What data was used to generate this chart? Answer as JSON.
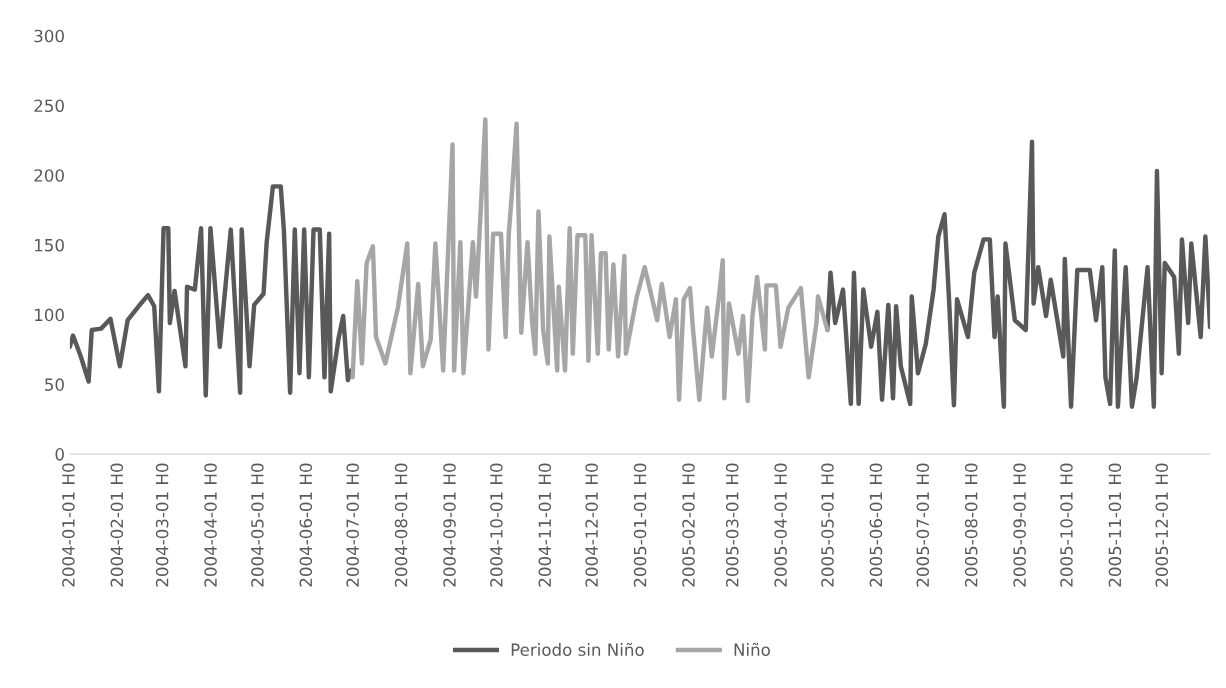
{
  "chart_data": {
    "type": "line",
    "grid": false,
    "legend": "bottom",
    "line_style": "solid",
    "marker": "none",
    "xlim": [
      "2004-01-01",
      "2005-12-31"
    ],
    "ylim": [
      0,
      300
    ],
    "yticks": [
      0,
      50,
      100,
      150,
      200,
      250,
      300
    ],
    "xticks": [
      {
        "value": "2004-01-01",
        "label": "2004-01-01 H0"
      },
      {
        "value": "2004-02-01",
        "label": "2004-02-01 H0"
      },
      {
        "value": "2004-03-01",
        "label": "2004-03-01 H0"
      },
      {
        "value": "2004-04-01",
        "label": "2004-04-01 H0"
      },
      {
        "value": "2004-05-01",
        "label": "2004-05-01 H0"
      },
      {
        "value": "2004-06-01",
        "label": "2004-06-01 H0"
      },
      {
        "value": "2004-07-01",
        "label": "2004-07-01 H0"
      },
      {
        "value": "2004-08-01",
        "label": "2004-08-01 H0"
      },
      {
        "value": "2004-09-01",
        "label": "2004-09-01 H0"
      },
      {
        "value": "2004-10-01",
        "label": "2004-10-01 H0"
      },
      {
        "value": "2004-11-01",
        "label": "2004-11-01 H0"
      },
      {
        "value": "2004-12-01",
        "label": "2004-12-01 H0"
      },
      {
        "value": "2005-01-01",
        "label": "2005-01-01 H0"
      },
      {
        "value": "2005-02-01",
        "label": "2005-02-01 H0"
      },
      {
        "value": "2005-03-01",
        "label": "2005-03-01 H0"
      },
      {
        "value": "2005-04-01",
        "label": "2005-04-01 H0"
      },
      {
        "value": "2005-05-01",
        "label": "2005-05-01 H0"
      },
      {
        "value": "2005-06-01",
        "label": "2005-06-01 H0"
      },
      {
        "value": "2005-07-01",
        "label": "2005-07-01 H0"
      },
      {
        "value": "2005-08-01",
        "label": "2005-08-01 H0"
      },
      {
        "value": "2005-09-01",
        "label": "2005-09-01 H0"
      },
      {
        "value": "2005-10-01",
        "label": "2005-10-01 H0"
      },
      {
        "value": "2005-11-01",
        "label": "2005-11-01 H0"
      },
      {
        "value": "2005-12-01",
        "label": "2005-12-01 H0"
      }
    ],
    "series": [
      {
        "name": "Periodo sin Niño",
        "color": "#595959",
        "x": [
          "2004-01-01",
          "2004-01-03",
          "2004-01-08",
          "2004-01-13",
          "2004-01-15",
          "2004-01-21",
          "2004-01-27",
          "2004-02-02",
          "2004-02-07",
          "2004-02-14",
          "2004-02-20",
          "2004-02-24",
          "2004-02-27",
          "2004-03-01",
          "2004-03-04",
          "2004-03-05",
          "2004-03-08",
          "2004-03-15",
          "2004-03-16",
          "2004-03-21",
          "2004-03-25",
          "2004-03-28",
          "2004-03-31",
          "2004-04-06",
          "2004-04-13",
          "2004-04-19",
          "2004-04-20",
          "2004-04-25",
          "2004-04-28",
          "2004-05-04",
          "2004-05-06",
          "2004-05-10",
          "2004-05-15",
          "2004-05-17",
          "2004-05-21",
          "2004-05-24",
          "2004-05-27",
          "2004-05-30",
          "2004-06-02",
          "2004-06-05",
          "2004-06-09",
          "2004-06-12",
          "2004-06-15",
          "2004-06-16",
          "2004-06-21",
          "2004-06-24",
          "2004-06-27",
          "2004-06-29",
          "2004-12-01",
          "2005-04-30",
          "2005-05-02",
          "2005-05-05",
          "2005-05-10",
          "2005-05-15",
          "2005-05-17",
          "2005-05-20",
          "2005-05-23",
          "2005-05-28",
          "2005-06-01",
          "2005-06-04",
          "2005-06-08",
          "2005-06-11",
          "2005-06-13",
          "2005-06-16",
          "2005-06-22",
          "2005-06-23",
          "2005-06-27",
          "2005-07-02",
          "2005-07-07",
          "2005-07-10",
          "2005-07-14",
          "2005-07-17",
          "2005-07-20",
          "2005-07-22",
          "2005-07-29",
          "2005-08-02",
          "2005-08-08",
          "2005-08-12",
          "2005-08-15",
          "2005-08-17",
          "2005-08-21",
          "2005-08-22",
          "2005-08-28",
          "2005-09-04",
          "2005-09-08",
          "2005-09-09",
          "2005-09-12",
          "2005-09-17",
          "2005-09-20",
          "2005-09-28",
          "2005-09-29",
          "2005-10-03",
          "2005-10-07",
          "2005-10-15",
          "2005-10-19",
          "2005-10-23",
          "2005-10-25",
          "2005-10-28",
          "2005-10-31",
          "2005-11-02",
          "2005-11-07",
          "2005-11-11",
          "2005-11-14",
          "2005-11-21",
          "2005-11-25",
          "2005-11-27",
          "2005-11-30",
          "2005-12-02",
          "2005-12-08",
          "2005-12-11",
          "2005-12-13",
          "2005-12-17",
          "2005-12-19",
          "2005-12-25",
          "2005-12-28",
          "2005-12-31"
        ],
        "values": [
          77,
          85,
          70,
          52,
          89,
          90,
          97,
          63,
          96,
          106,
          114,
          106,
          45,
          162,
          162,
          94,
          117,
          63,
          120,
          118,
          162,
          42,
          162,
          77,
          161,
          44,
          161,
          63,
          107,
          115,
          152,
          192,
          192,
          161,
          44,
          161,
          58,
          161,
          55,
          161,
          161,
          55,
          158,
          45,
          83,
          99,
          53,
          60,
          null,
          89,
          130,
          94,
          118,
          36,
          130,
          36,
          118,
          77,
          102,
          39,
          107,
          40,
          106,
          63,
          36,
          113,
          58,
          79,
          118,
          156,
          172,
          108,
          35,
          111,
          84,
          130,
          154,
          154,
          84,
          113,
          34,
          151,
          96,
          89,
          224,
          108,
          134,
          99,
          125,
          70,
          140,
          34,
          132,
          132,
          96,
          134,
          55,
          36,
          146,
          34,
          134,
          34,
          55,
          134,
          34,
          203,
          58,
          137,
          127,
          72,
          154,
          94,
          151,
          84,
          156,
          91
        ]
      },
      {
        "name": "Niño",
        "color": "#a6a6a6",
        "x": [
          "2004-06-30",
          "2004-07-03",
          "2004-07-06",
          "2004-07-09",
          "2004-07-13",
          "2004-07-15",
          "2004-07-21",
          "2004-07-29",
          "2004-08-04",
          "2004-08-06",
          "2004-08-11",
          "2004-08-14",
          "2004-08-19",
          "2004-08-22",
          "2004-08-27",
          "2004-09-02",
          "2004-09-03",
          "2004-09-07",
          "2004-09-09",
          "2004-09-15",
          "2004-09-17",
          "2004-09-19",
          "2004-09-23",
          "2004-09-25",
          "2004-09-28",
          "2004-10-03",
          "2004-10-06",
          "2004-10-08",
          "2004-10-10",
          "2004-10-13",
          "2004-10-16",
          "2004-10-20",
          "2004-10-23",
          "2004-10-25",
          "2004-10-27",
          "2004-10-30",
          "2004-11-02",
          "2004-11-03",
          "2004-11-08",
          "2004-11-09",
          "2004-11-13",
          "2004-11-16",
          "2004-11-18",
          "2004-11-21",
          "2004-11-26",
          "2004-11-28",
          "2004-11-30",
          "2004-12-04",
          "2004-12-06",
          "2004-12-09",
          "2004-12-11",
          "2004-12-14",
          "2004-12-17",
          "2004-12-21",
          "2004-12-22",
          "2004-12-29",
          "2005-01-03",
          "2005-01-06",
          "2005-01-11",
          "2005-01-14",
          "2005-01-19",
          "2005-01-23",
          "2005-01-25",
          "2005-01-28",
          "2005-02-01",
          "2005-02-03",
          "2005-02-07",
          "2005-02-12",
          "2005-02-15",
          "2005-02-20",
          "2005-02-22",
          "2005-02-23",
          "2005-02-26",
          "2005-03-04",
          "2005-03-07",
          "2005-03-10",
          "2005-03-13",
          "2005-03-16",
          "2005-03-21",
          "2005-03-22",
          "2005-03-28",
          "2005-03-31",
          "2005-04-05",
          "2005-04-13",
          "2005-04-18",
          "2005-04-23",
          "2005-04-24",
          "2005-04-30"
        ],
        "values": [
          55,
          124,
          65,
          137,
          149,
          84,
          65,
          105,
          151,
          58,
          122,
          63,
          82,
          151,
          60,
          222,
          60,
          152,
          58,
          152,
          113,
          152,
          240,
          75,
          158,
          158,
          84,
          158,
          187,
          237,
          87,
          152,
          94,
          72,
          174,
          89,
          65,
          156,
          60,
          120,
          60,
          162,
          72,
          157,
          157,
          67,
          157,
          72,
          144,
          144,
          75,
          136,
          70,
          142,
          72,
          113,
          134,
          120,
          96,
          122,
          84,
          111,
          39,
          111,
          119,
          89,
          39,
          105,
          70,
          117,
          139,
          40,
          108,
          72,
          99,
          38,
          99,
          127,
          75,
          121,
          121,
          77,
          105,
          119,
          55,
          94,
          113,
          89
        ]
      }
    ]
  }
}
